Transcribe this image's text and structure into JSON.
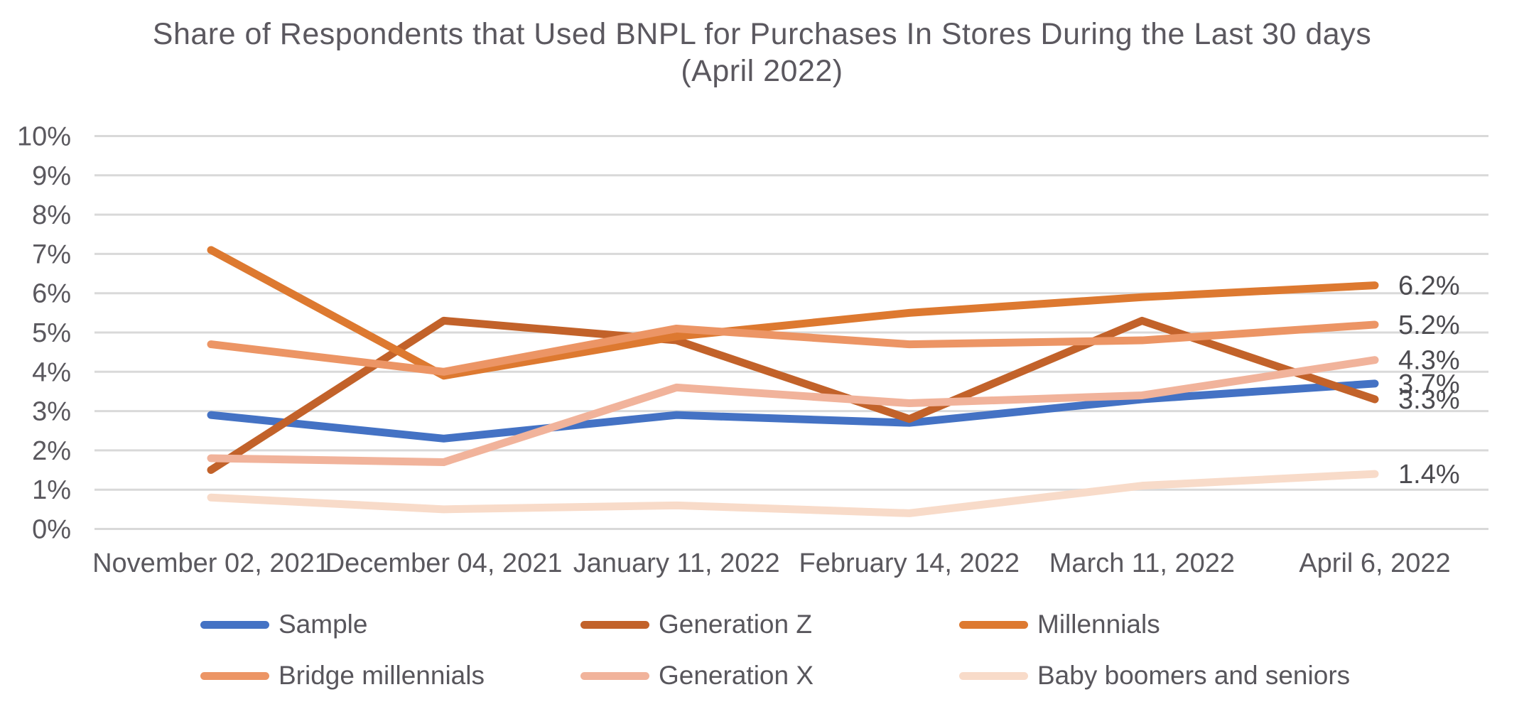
{
  "title": {
    "line1": "Share of Respondents that Used BNPL for Purchases In Stores During the Last 30 days",
    "line2": "(April 2022)"
  },
  "colors": {
    "background": "#FFFFFF",
    "title_text": "#5B585F",
    "axis_text": "#5A585E",
    "end_label_text": "#4C4B50",
    "legend_text": "#58565C",
    "gridline": "#D9D9D9"
  },
  "chart_data": {
    "type": "line",
    "title": "Share of Respondents that Used BNPL for Purchases In Stores During the Last 30 days (April 2022)",
    "x_categories": [
      "November 02, 2021",
      "December 04, 2021",
      "January 11, 2022",
      "February 14, 2022",
      "March 11, 2022",
      "April 6, 2022"
    ],
    "y_tick_labels": [
      "10%",
      "9%",
      "8%",
      "7%",
      "6%",
      "5%",
      "4%",
      "3%",
      "2%",
      "1%",
      "0%"
    ],
    "ylim": [
      0,
      10
    ],
    "y_unit": "%",
    "grid": true,
    "legend_position": "bottom",
    "series": [
      {
        "name": "Sample",
        "color": "#4472C4",
        "values": [
          2.9,
          2.3,
          2.9,
          2.7,
          3.3,
          3.7
        ],
        "end_label": "3.7%"
      },
      {
        "name": "Generation Z",
        "color": "#C2622A",
        "values": [
          1.5,
          5.3,
          4.8,
          2.8,
          5.3,
          3.3
        ],
        "end_label": "3.3%"
      },
      {
        "name": "Millennials",
        "color": "#DD7930",
        "values": [
          7.1,
          3.9,
          4.9,
          5.5,
          5.9,
          6.2
        ],
        "end_label": "6.2%"
      },
      {
        "name": "Bridge millennials",
        "color": "#EC9565",
        "values": [
          4.7,
          4.0,
          5.1,
          4.7,
          4.8,
          5.2
        ],
        "end_label": "5.2%"
      },
      {
        "name": "Generation X",
        "color": "#F1B39B",
        "values": [
          1.8,
          1.7,
          3.6,
          3.2,
          3.4,
          4.3
        ],
        "end_label": "4.3%"
      },
      {
        "name": "Baby boomers and seniors",
        "color": "#F8DBC9",
        "values": [
          0.8,
          0.5,
          0.6,
          0.4,
          1.1,
          1.4
        ],
        "end_label": "1.4%"
      }
    ]
  }
}
